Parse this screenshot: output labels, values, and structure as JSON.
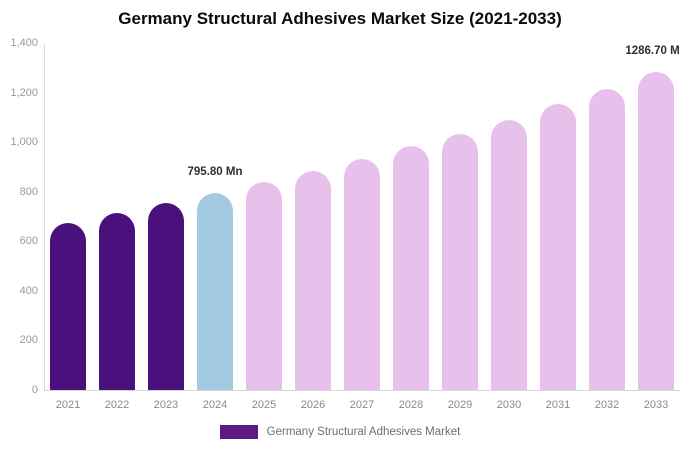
{
  "title": "Germany Structural Adhesives Market Size (2021-2033)",
  "colors": {
    "bar_historical": "#4a107b",
    "bar_base_year": "#a4cae1",
    "bar_forecast": "#e7c1eb",
    "legend_swatch": "#5b1a84",
    "axis_line": "#d9d9d9",
    "axis_text": "#999999",
    "value_label_text": "#2f2f2f"
  },
  "chart_data": {
    "type": "bar",
    "title": "Germany Structural Adhesives Market Size (2021-2033)",
    "categories": [
      "2021",
      "2022",
      "2023",
      "2024",
      "2025",
      "2026",
      "2027",
      "2028",
      "2029",
      "2030",
      "2031",
      "2032",
      "2033"
    ],
    "values": [
      675,
      717,
      757,
      795.8,
      840,
      884,
      932,
      986,
      1035,
      1092,
      1154,
      1216,
      1286.7
    ],
    "unit": "Mn",
    "bar_roles": [
      "historical",
      "historical",
      "historical",
      "base_year",
      "forecast",
      "forecast",
      "forecast",
      "forecast",
      "forecast",
      "forecast",
      "forecast",
      "forecast",
      "forecast"
    ],
    "xlabel": "",
    "ylabel": "",
    "ylim": [
      0,
      1400
    ],
    "y_tick_values": [
      0,
      200,
      400,
      600,
      800,
      1000,
      1200,
      1400
    ],
    "y_tick_labels": [
      "0",
      "200",
      "400",
      "600",
      "800",
      "1,000",
      "1,200",
      "1,400"
    ],
    "grid": false,
    "annotations": [
      {
        "category": "2024",
        "label": "795.80 Mn"
      },
      {
        "category": "2033",
        "label": "1286.70 Mn"
      }
    ],
    "legend": {
      "position": "bottom-center",
      "items": [
        {
          "label": "Germany Structural Adhesives Market",
          "role": "legend_swatch"
        }
      ]
    }
  }
}
